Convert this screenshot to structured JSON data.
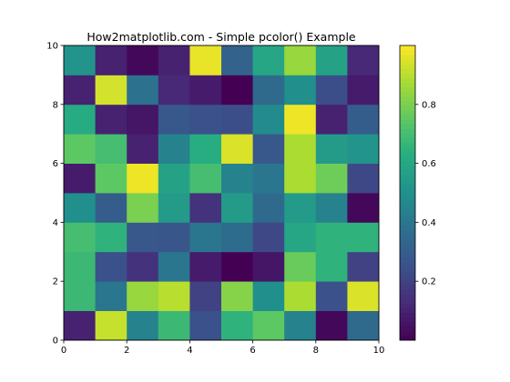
{
  "chart_data": {
    "type": "heatmap",
    "title": "How2matplotlib.com - Simple pcolor() Example",
    "xlabel": "",
    "ylabel": "",
    "xlim": [
      0,
      10
    ],
    "ylim": [
      0,
      10
    ],
    "x_ticks": [
      0,
      2,
      4,
      6,
      8,
      10
    ],
    "y_ticks": [
      0,
      2,
      4,
      6,
      8,
      10
    ],
    "colormap": "viridis",
    "vmin": 0.0,
    "vmax": 1.0,
    "colorbar_ticks": [
      0.2,
      0.4,
      0.6,
      0.8
    ],
    "rows_bottom_to_top": [
      [
        0.1,
        0.92,
        0.45,
        0.68,
        0.25,
        0.65,
        0.75,
        0.45,
        0.02,
        0.35
      ],
      [
        0.68,
        0.4,
        0.85,
        0.9,
        0.2,
        0.82,
        0.5,
        0.88,
        0.25,
        0.95
      ],
      [
        0.68,
        0.25,
        0.15,
        0.4,
        0.08,
        0.0,
        0.06,
        0.77,
        0.65,
        0.2
      ],
      [
        0.7,
        0.65,
        0.28,
        0.27,
        0.4,
        0.36,
        0.22,
        0.6,
        0.65,
        0.65
      ],
      [
        0.5,
        0.3,
        0.8,
        0.55,
        0.15,
        0.55,
        0.35,
        0.55,
        0.45,
        0.02
      ],
      [
        0.08,
        0.75,
        0.98,
        0.58,
        0.7,
        0.45,
        0.4,
        0.88,
        0.78,
        0.22
      ],
      [
        0.75,
        0.7,
        0.1,
        0.45,
        0.63,
        0.95,
        0.28,
        0.88,
        0.55,
        0.52
      ],
      [
        0.62,
        0.1,
        0.06,
        0.28,
        0.25,
        0.24,
        0.48,
        0.98,
        0.1,
        0.3
      ],
      [
        0.1,
        0.94,
        0.38,
        0.12,
        0.08,
        0.0,
        0.35,
        0.5,
        0.24,
        0.08
      ],
      [
        0.52,
        0.1,
        0.02,
        0.1,
        0.97,
        0.32,
        0.6,
        0.85,
        0.58,
        0.12
      ]
    ]
  }
}
